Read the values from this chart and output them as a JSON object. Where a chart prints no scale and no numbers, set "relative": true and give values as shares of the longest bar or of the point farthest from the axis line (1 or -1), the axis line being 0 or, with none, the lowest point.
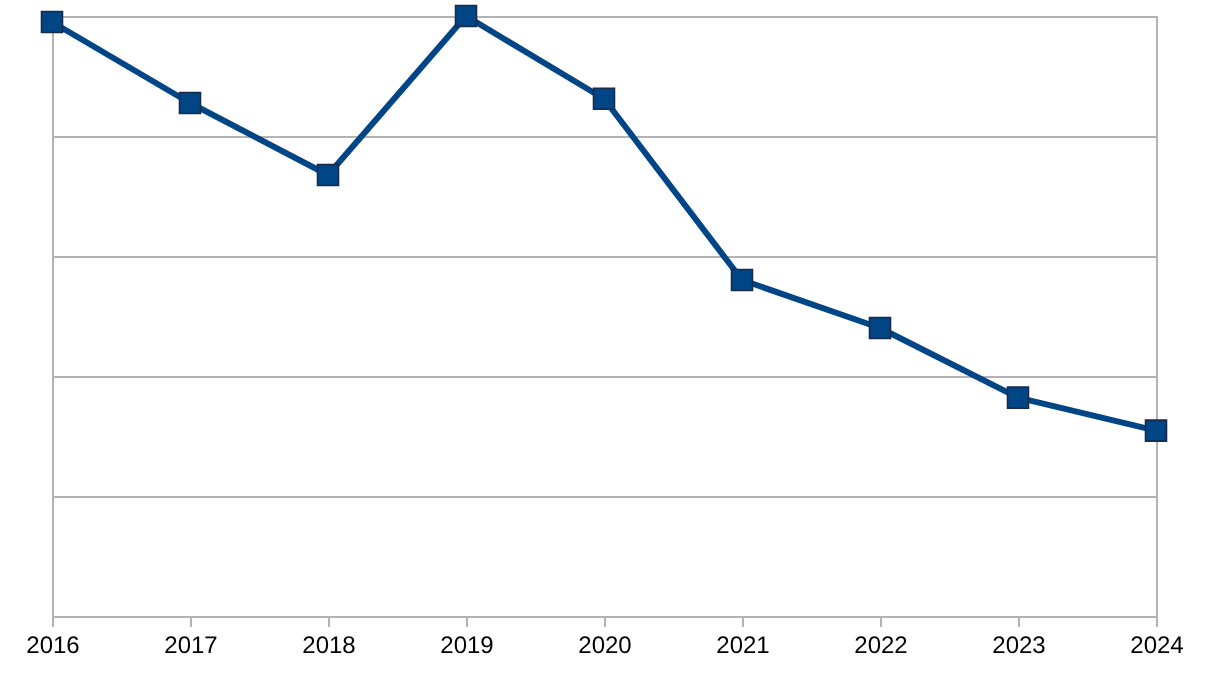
{
  "chart_data": {
    "type": "line",
    "relative": true,
    "categories": [
      "2016",
      "2017",
      "2018",
      "2019",
      "2020",
      "2021",
      "2022",
      "2023",
      "2024"
    ],
    "series": [
      {
        "color": "#004586",
        "values": [
          0.99,
          0.855,
          0.735,
          1,
          0.862,
          0.56,
          0.48,
          0.364,
          0.309
        ]
      }
    ],
    "grid": "y",
    "marker": "square",
    "line_style": "solid"
  }
}
